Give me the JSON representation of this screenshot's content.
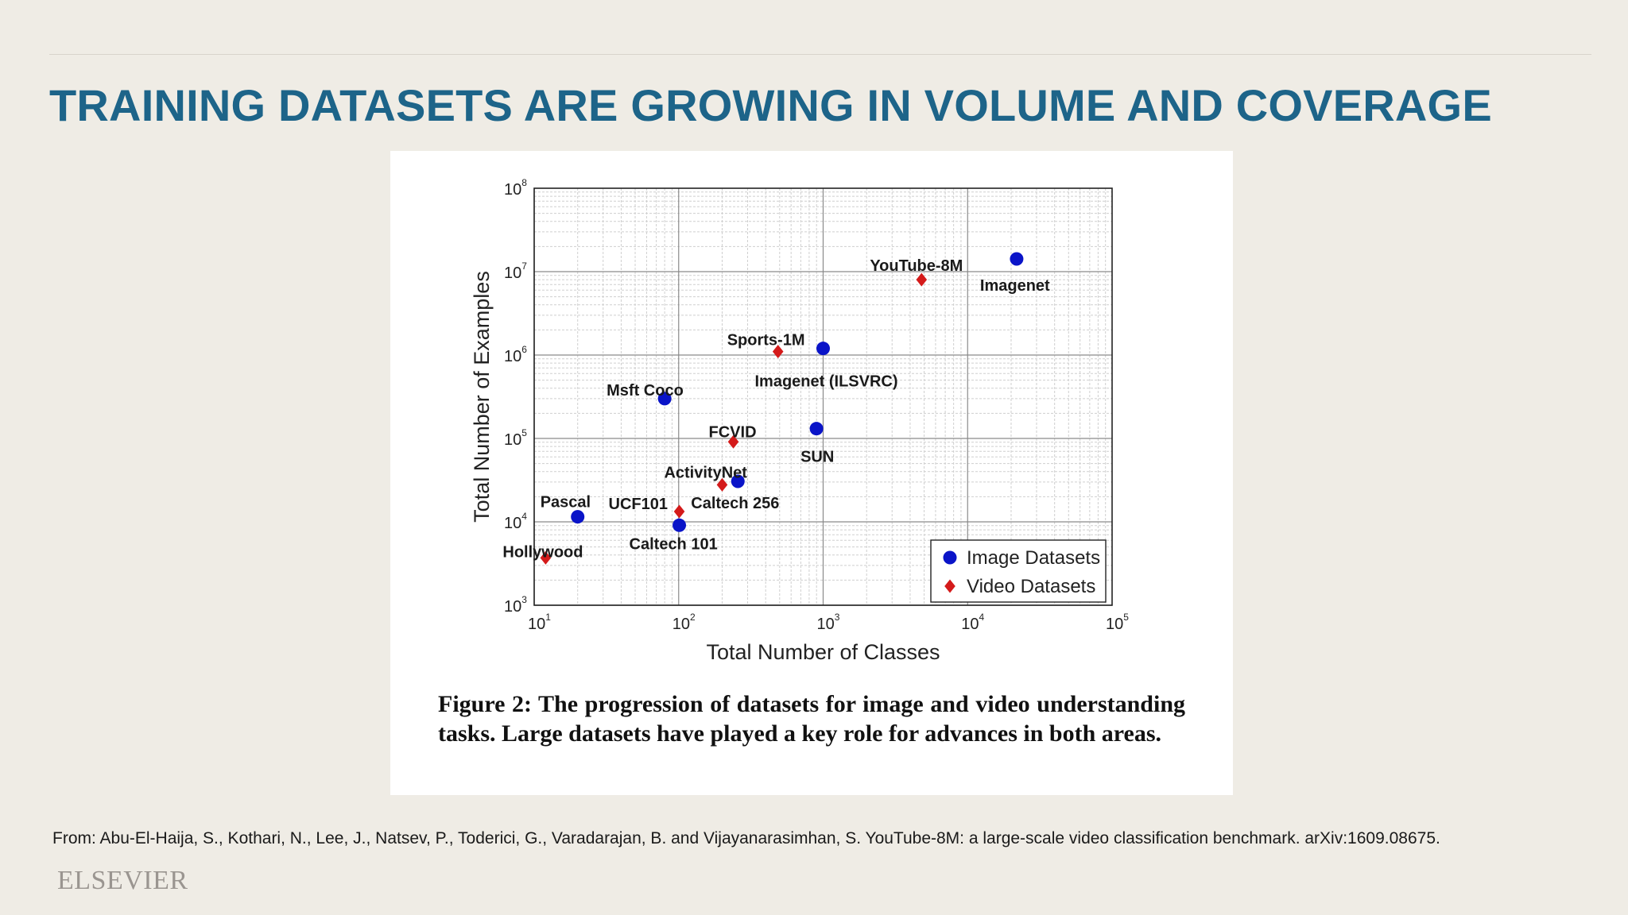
{
  "slide": {
    "title": "TRAINING DATASETS ARE GROWING IN VOLUME AND COVERAGE",
    "citation": "From: Abu-El-Haija, S., Kothari, N., Lee, J., Natsev, P., Toderici, G., Varadarajan, B. and Vijayanarasimhan, S. YouTube-8M: a large-scale video classification benchmark. arXiv:1609.08675.",
    "publisher": "ELSEVIER",
    "colors": {
      "title": "#1d6489",
      "background": "#efece5",
      "image_series": "#0a14c8",
      "video_series": "#d41a1a"
    }
  },
  "figure": {
    "caption_label": "Figure 2:",
    "caption_text": "The progression of datasets for image and video understanding tasks. Large datasets have played a key role for advances in both areas."
  },
  "chart_data": {
    "type": "scatter",
    "xlabel": "Total Number of Classes",
    "ylabel": "Total Number of Examples",
    "xscale": "log",
    "yscale": "log",
    "xlim": [
      10,
      100000
    ],
    "ylim": [
      1000,
      100000000
    ],
    "x_ticks": [
      {
        "base": "10",
        "exp": "1"
      },
      {
        "base": "10",
        "exp": "2"
      },
      {
        "base": "10",
        "exp": "3"
      },
      {
        "base": "10",
        "exp": "4"
      },
      {
        "base": "10",
        "exp": "5"
      }
    ],
    "y_ticks": [
      {
        "base": "10",
        "exp": "3"
      },
      {
        "base": "10",
        "exp": "4"
      },
      {
        "base": "10",
        "exp": "5"
      },
      {
        "base": "10",
        "exp": "6"
      },
      {
        "base": "10",
        "exp": "7"
      },
      {
        "base": "10",
        "exp": "8"
      }
    ],
    "grid": true,
    "legend_position": "bottom-right",
    "series": [
      {
        "name": "Image Datasets",
        "marker": "circle",
        "color": "#0a14c8",
        "points": [
          {
            "label": "Imagenet",
            "x": 21841,
            "y": 14200000
          },
          {
            "label": "Imagenet (ILSVRC)",
            "x": 1000,
            "y": 1200000
          },
          {
            "label": "Msft Coco",
            "x": 80,
            "y": 300000
          },
          {
            "label": "SUN",
            "x": 899,
            "y": 131000
          },
          {
            "label": "Caltech 256",
            "x": 257,
            "y": 30600
          },
          {
            "label": "Pascal",
            "x": 20,
            "y": 11500
          },
          {
            "label": "Caltech 101",
            "x": 101,
            "y": 9100
          }
        ]
      },
      {
        "name": "Video Datasets",
        "marker": "diamond",
        "color": "#d41a1a",
        "points": [
          {
            "label": "YouTube-8M",
            "x": 4800,
            "y": 8000000
          },
          {
            "label": "Sports-1M",
            "x": 487,
            "y": 1100000
          },
          {
            "label": "FCVID",
            "x": 239,
            "y": 91000
          },
          {
            "label": "ActivityNet",
            "x": 200,
            "y": 27800
          },
          {
            "label": "UCF101",
            "x": 101,
            "y": 13300
          },
          {
            "label": "Hollywood",
            "x": 12,
            "y": 3700
          }
        ]
      }
    ]
  }
}
